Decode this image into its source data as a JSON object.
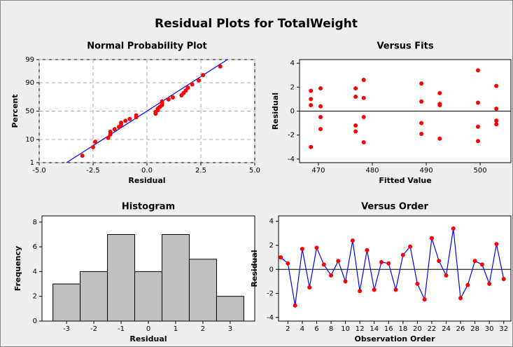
{
  "title": "Residual Plots for TotalWeight",
  "chart_data": [
    {
      "type": "scatter",
      "title": "Normal Probability Plot",
      "xlabel": "Residual",
      "ylabel": "Percent",
      "yscale": "probability",
      "color": "#ff0000",
      "line_color": "#0000ff",
      "grid": true,
      "xlim": [
        -5,
        5
      ],
      "ylim": [
        1,
        99
      ],
      "xticks": [
        {
          "value": -5,
          "label": "-5.0"
        },
        -2.5,
        {
          "value": 0,
          "label": "0.0"
        },
        2.5,
        {
          "value": 5,
          "label": "5.0"
        }
      ],
      "yticks": [
        1,
        10,
        50,
        90,
        99
      ],
      "x": [
        -3.0,
        -2.5,
        -2.4,
        -1.8,
        -1.7,
        -1.7,
        -1.5,
        -1.3,
        -1.2,
        -1.2,
        -1.0,
        -0.8,
        -0.5,
        -0.5,
        0.4,
        0.4,
        0.5,
        0.5,
        0.6,
        0.7,
        0.7,
        0.7,
        1.0,
        1.2,
        1.6,
        1.7,
        1.8,
        1.9,
        2.1,
        2.4,
        2.6,
        3.4
      ],
      "values": [
        2.2,
        5.2,
        8.3,
        11.4,
        14.5,
        17.6,
        20.7,
        23.8,
        26.9,
        29.9,
        33.0,
        36.1,
        39.2,
        42.3,
        45.4,
        48.5,
        51.5,
        54.6,
        57.7,
        60.8,
        63.9,
        67.0,
        70.1,
        73.1,
        76.2,
        79.3,
        82.4,
        85.5,
        88.6,
        91.7,
        94.8,
        97.8
      ],
      "fit_line": {
        "x": [
          -3.73,
          3.73
        ],
        "y": [
          1,
          99
        ]
      }
    },
    {
      "type": "scatter",
      "title": "Versus Fits",
      "xlabel": "Fitted Value",
      "ylabel": "Residual",
      "color": "#ff0000",
      "reference_line": 0,
      "xlim": [
        466.5,
        505.7
      ],
      "ylim": [
        -4.3,
        4.3
      ],
      "xticks": [
        470,
        480,
        490,
        500
      ],
      "yticks": [
        -4,
        -2,
        0,
        2,
        4
      ],
      "x": [
        468.6,
        468.6,
        468.6,
        468.6,
        470.4,
        470.4,
        470.4,
        470.4,
        476.9,
        476.9,
        476.9,
        476.9,
        478.4,
        478.4,
        478.4,
        478.4,
        489.1,
        489.1,
        489.1,
        489.1,
        492.5,
        492.5,
        492.5,
        492.5,
        499.6,
        499.6,
        499.6,
        499.6,
        503,
        503,
        503,
        503
      ],
      "values": [
        1.7,
        1.0,
        0.5,
        -3.0,
        1.9,
        0.4,
        -0.5,
        -1.5,
        1.9,
        1.2,
        -1.2,
        -1.7,
        2.6,
        1.1,
        -0.5,
        -2.6,
        2.3,
        0.8,
        -1.0,
        -1.9,
        1.5,
        0.6,
        0.5,
        -2.3,
        3.4,
        0.7,
        -1.3,
        -2.5,
        2.1,
        0.2,
        -0.8,
        -1.1
      ]
    },
    {
      "type": "histogram",
      "title": "Histogram",
      "xlabel": "Residual",
      "ylabel": "Frequency",
      "color": "#c0c0c0",
      "xlim": [
        -3.9,
        3.9
      ],
      "ylim": [
        0,
        8.5
      ],
      "xticks": [
        -3,
        -2,
        -1,
        0,
        1,
        2,
        3
      ],
      "yticks": [
        0,
        2,
        4,
        6,
        8
      ],
      "bins": [
        -3.5,
        -2.5,
        -1.5,
        -0.5,
        0.5,
        1.5,
        2.5,
        3.5
      ],
      "values": [
        3,
        4,
        7,
        4,
        7,
        5,
        2
      ]
    },
    {
      "type": "line",
      "title": "Versus Order",
      "xlabel": "Observation Order",
      "ylabel": "Residual",
      "color": "#ff0000",
      "line_color": "#0000ff",
      "reference_line": 0,
      "xlim": [
        0.7,
        33
      ],
      "ylim": [
        -4.3,
        4.45
      ],
      "xticks": [
        2,
        4,
        6,
        8,
        10,
        12,
        14,
        16,
        18,
        20,
        22,
        24,
        26,
        28,
        30,
        32
      ],
      "yticks": [
        -4,
        -2,
        0,
        2,
        4
      ],
      "x": [
        1,
        2,
        3,
        4,
        5,
        6,
        7,
        8,
        9,
        10,
        11,
        12,
        13,
        14,
        15,
        16,
        17,
        18,
        19,
        20,
        21,
        22,
        23,
        24,
        25,
        26,
        27,
        28,
        29,
        30,
        31,
        32
      ],
      "values": [
        1.0,
        0.5,
        -3.0,
        1.7,
        -1.5,
        1.8,
        0.4,
        -0.5,
        0.7,
        -1.0,
        2.4,
        -1.8,
        1.6,
        -1.7,
        0.6,
        0.5,
        -1.7,
        1.2,
        1.9,
        -1.2,
        -2.5,
        2.6,
        0.7,
        -0.5,
        3.4,
        -2.4,
        -1.3,
        0.7,
        0.4,
        -1.2,
        2.1,
        -0.8
      ]
    }
  ]
}
